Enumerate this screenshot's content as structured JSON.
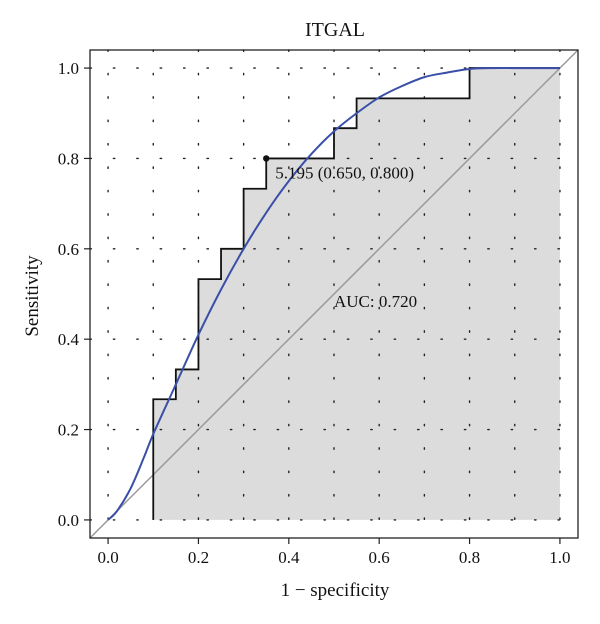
{
  "chart_data": {
    "type": "line",
    "title": "ITGAL",
    "xlabel": "1 − specificity",
    "ylabel": "Sensitivity",
    "xlim": [
      -0.04,
      1.04
    ],
    "ylim": [
      -0.04,
      1.04
    ],
    "x_ticks": [
      "0.0",
      "0.2",
      "0.4",
      "0.6",
      "0.8",
      "1.0"
    ],
    "y_ticks": [
      "0.0",
      "0.2",
      "0.4",
      "0.6",
      "0.8",
      "1.0"
    ],
    "grid": "dotted",
    "series": [
      {
        "role": "empirical ROC (step)",
        "color": "#111111",
        "x": [
          0.1,
          0.1,
          0.15,
          0.15,
          0.2,
          0.2,
          0.25,
          0.25,
          0.3,
          0.3,
          0.35,
          0.35,
          0.5,
          0.5,
          0.55,
          0.55,
          0.8,
          0.8,
          1.0
        ],
        "y": [
          0.0,
          0.267,
          0.267,
          0.333,
          0.333,
          0.533,
          0.533,
          0.6,
          0.6,
          0.733,
          0.733,
          0.8,
          0.8,
          0.867,
          0.867,
          0.933,
          0.933,
          1.0,
          1.0
        ]
      },
      {
        "role": "smoothed ROC",
        "color": "#3a4fa8",
        "x": [
          0.0,
          0.02,
          0.05,
          0.08,
          0.1,
          0.15,
          0.2,
          0.25,
          0.3,
          0.35,
          0.4,
          0.45,
          0.5,
          0.55,
          0.6,
          0.65,
          0.7,
          0.75,
          0.8,
          0.85,
          0.9,
          0.95,
          1.0
        ],
        "y": [
          0.0,
          0.02,
          0.07,
          0.14,
          0.19,
          0.3,
          0.41,
          0.51,
          0.6,
          0.68,
          0.75,
          0.81,
          0.86,
          0.9,
          0.935,
          0.96,
          0.98,
          0.99,
          0.998,
          1.0,
          1.0,
          1.0,
          1.0
        ]
      },
      {
        "role": "reference diagonal",
        "color": "#999999",
        "x": [
          -0.04,
          1.04
        ],
        "y": [
          -0.04,
          1.04
        ]
      }
    ],
    "annotations": [
      {
        "role": "threshold",
        "text": "5.195 (0.650, 0.800)",
        "x": 0.35,
        "y": 0.8
      },
      {
        "role": "auc",
        "text": "AUC: 0.720",
        "x": 0.5,
        "y": 0.5
      }
    ],
    "colors": {
      "fill": "#dcdcdc",
      "grid": "#222222"
    }
  }
}
